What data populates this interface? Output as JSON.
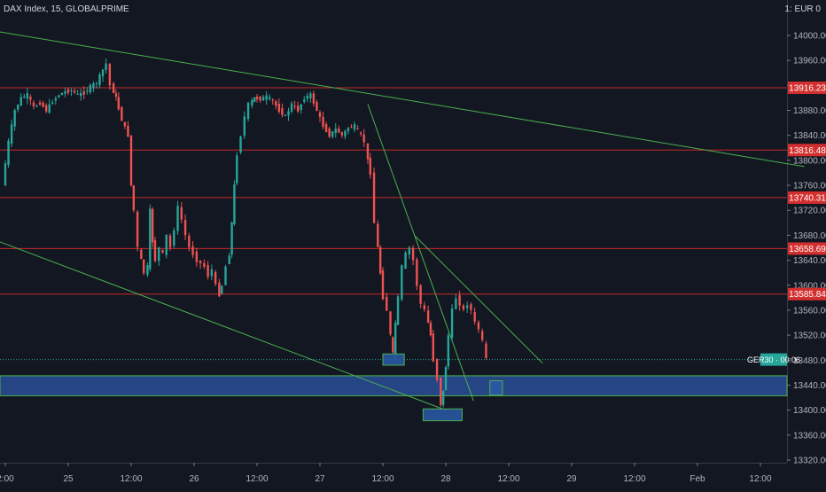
{
  "header": {
    "title": "DAX Index, 15, GLOBALPRIME",
    "currency": "1: EUR 0"
  },
  "chart_data": {
    "type": "candlestick",
    "symbol": "DAX Index",
    "interval": "15",
    "source": "GLOBALPRIME",
    "ylim": [
      13310,
      14035
    ],
    "y_ticks": [
      "14000.00",
      "13960.00",
      "13920.00",
      "13880.00",
      "13840.00",
      "13800.00",
      "13760.00",
      "13720.00",
      "13680.00",
      "13640.00",
      "13600.00",
      "13560.00",
      "13520.00",
      "13480.00",
      "13440.00",
      "13400.00",
      "13360.00",
      "13320.00"
    ],
    "x_ticks": [
      "2:00",
      "25",
      "12:00",
      "26",
      "12:00",
      "27",
      "12:00",
      "28",
      "12:00",
      "29",
      "12:00",
      "Feb",
      "12:00"
    ],
    "price_lines": [
      {
        "value": 13916.23,
        "label": "13916.23"
      },
      {
        "value": 13816.48,
        "label": "13816.48"
      },
      {
        "value": 13740.31,
        "label": "13740.31"
      },
      {
        "value": 13658.69,
        "label": "13658.69"
      },
      {
        "value": 13585.84,
        "label": "13585.84"
      }
    ],
    "current": {
      "label": "GER30 · 00:06",
      "value": 13481
    },
    "support_zone": [
      13423,
      13455
    ],
    "trend_lines": [
      {
        "from": {
          "x": -0.05,
          "y": 14006
        },
        "to": {
          "x": 6.35,
          "y": 13790
        }
      },
      {
        "from": {
          "x": -0.05,
          "y": 13670
        },
        "to": {
          "x": 3.5,
          "y": 13400
        }
      },
      {
        "from": {
          "x": 2.88,
          "y": 13890
        },
        "to": {
          "x": 3.72,
          "y": 13415
        }
      },
      {
        "from": {
          "x": 3.25,
          "y": 13680
        },
        "to": {
          "x": 4.27,
          "y": 13475
        }
      }
    ],
    "boxes": [
      {
        "x0": 3.0,
        "x1": 3.17,
        "y0": 13472,
        "y1": 13490
      },
      {
        "x0": 3.32,
        "x1": 3.63,
        "y0": 13383,
        "y1": 13402
      },
      {
        "x0": 3.85,
        "x1": 3.95,
        "y0": 13424,
        "y1": 13447
      }
    ],
    "price_path": [
      [
        0.0,
        13760
      ],
      [
        0.05,
        13830
      ],
      [
        0.1,
        13880
      ],
      [
        0.15,
        13900
      ],
      [
        0.2,
        13905
      ],
      [
        0.25,
        13885
      ],
      [
        0.3,
        13892
      ],
      [
        0.35,
        13880
      ],
      [
        0.4,
        13895
      ],
      [
        0.45,
        13905
      ],
      [
        0.5,
        13910
      ],
      [
        0.55,
        13912
      ],
      [
        0.6,
        13905
      ],
      [
        0.65,
        13908
      ],
      [
        0.7,
        13918
      ],
      [
        0.75,
        13925
      ],
      [
        0.8,
        13945
      ],
      [
        0.83,
        13955
      ],
      [
        0.86,
        13920
      ],
      [
        0.9,
        13900
      ],
      [
        0.95,
        13865
      ],
      [
        1.0,
        13840
      ],
      [
        1.02,
        13760
      ],
      [
        1.05,
        13720
      ],
      [
        1.08,
        13660
      ],
      [
        1.1,
        13640
      ],
      [
        1.13,
        13620
      ],
      [
        1.15,
        13630
      ],
      [
        1.17,
        13720
      ],
      [
        1.19,
        13670
      ],
      [
        1.22,
        13640
      ],
      [
        1.25,
        13660
      ],
      [
        1.28,
        13650
      ],
      [
        1.31,
        13680
      ],
      [
        1.34,
        13660
      ],
      [
        1.37,
        13690
      ],
      [
        1.4,
        13725
      ],
      [
        1.43,
        13705
      ],
      [
        1.46,
        13680
      ],
      [
        1.49,
        13660
      ],
      [
        1.52,
        13650
      ],
      [
        1.55,
        13640
      ],
      [
        1.58,
        13635
      ],
      [
        1.61,
        13630
      ],
      [
        1.64,
        13615
      ],
      [
        1.67,
        13625
      ],
      [
        1.7,
        13600
      ],
      [
        1.72,
        13585
      ],
      [
        1.75,
        13600
      ],
      [
        1.78,
        13630
      ],
      [
        1.8,
        13650
      ],
      [
        1.82,
        13700
      ],
      [
        1.84,
        13760
      ],
      [
        1.87,
        13810
      ],
      [
        1.9,
        13840
      ],
      [
        1.93,
        13870
      ],
      [
        1.96,
        13890
      ],
      [
        2.0,
        13900
      ],
      [
        2.05,
        13898
      ],
      [
        2.1,
        13902
      ],
      [
        2.15,
        13895
      ],
      [
        2.2,
        13880
      ],
      [
        2.25,
        13870
      ],
      [
        2.3,
        13890
      ],
      [
        2.35,
        13880
      ],
      [
        2.4,
        13900
      ],
      [
        2.45,
        13905
      ],
      [
        2.5,
        13880
      ],
      [
        2.55,
        13855
      ],
      [
        2.6,
        13840
      ],
      [
        2.65,
        13850
      ],
      [
        2.7,
        13840
      ],
      [
        2.75,
        13852
      ],
      [
        2.8,
        13855
      ],
      [
        2.85,
        13840
      ],
      [
        2.88,
        13830
      ],
      [
        2.9,
        13800
      ],
      [
        2.93,
        13780
      ],
      [
        2.96,
        13700
      ],
      [
        3.0,
        13620
      ],
      [
        3.03,
        13580
      ],
      [
        3.06,
        13560
      ],
      [
        3.08,
        13520
      ],
      [
        3.1,
        13490
      ],
      [
        3.12,
        13540
      ],
      [
        3.15,
        13580
      ],
      [
        3.18,
        13630
      ],
      [
        3.21,
        13650
      ],
      [
        3.24,
        13660
      ],
      [
        3.27,
        13640
      ],
      [
        3.3,
        13600
      ],
      [
        3.33,
        13570
      ],
      [
        3.36,
        13560
      ],
      [
        3.4,
        13520
      ],
      [
        3.43,
        13480
      ],
      [
        3.46,
        13450
      ],
      [
        3.48,
        13410
      ],
      [
        3.5,
        13430
      ],
      [
        3.52,
        13470
      ],
      [
        3.55,
        13520
      ],
      [
        3.58,
        13560
      ],
      [
        3.61,
        13580
      ],
      [
        3.64,
        13570
      ],
      [
        3.67,
        13560
      ],
      [
        3.7,
        13570
      ],
      [
        3.73,
        13560
      ],
      [
        3.76,
        13540
      ],
      [
        3.79,
        13530
      ],
      [
        3.82,
        13510
      ],
      [
        3.85,
        13481
      ]
    ]
  }
}
